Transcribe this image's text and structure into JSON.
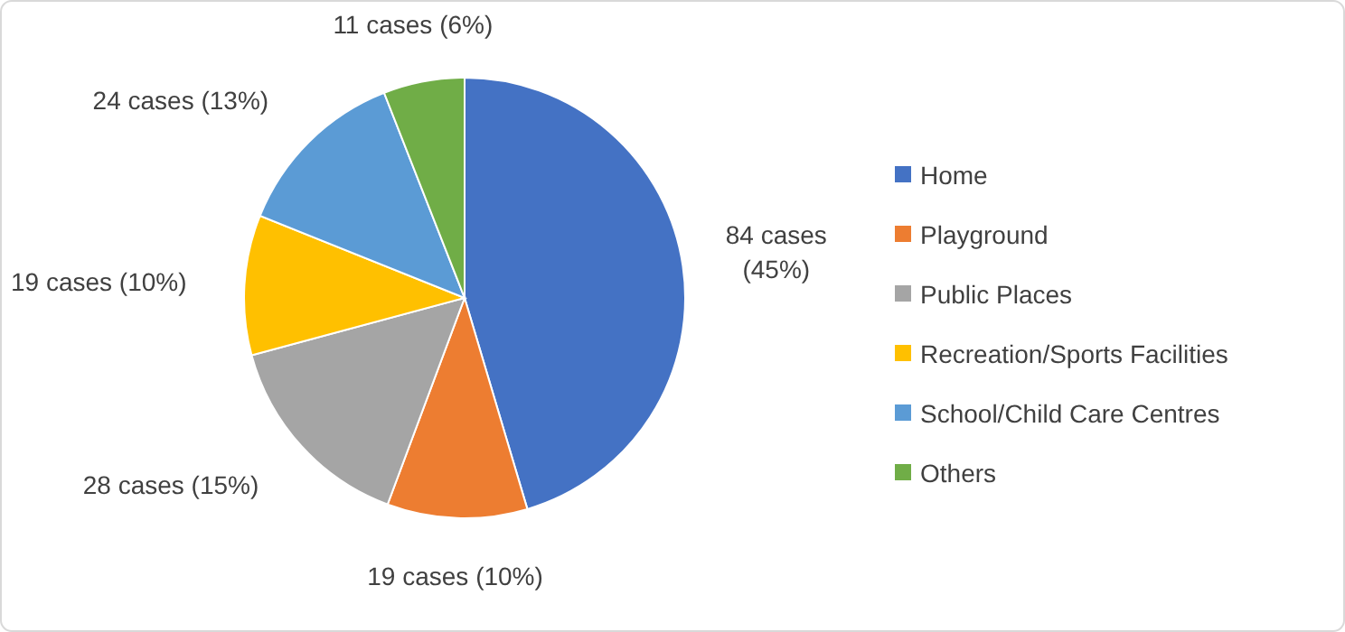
{
  "chart_data": {
    "type": "pie",
    "categories": [
      "Home",
      "Playground",
      "Public Places",
      "Recreation/Sports Facilities",
      "School/Child Care Centres",
      "Others"
    ],
    "values": [
      84,
      19,
      28,
      19,
      24,
      11
    ],
    "colors": [
      "#4472c4",
      "#ed7d31",
      "#a5a5a5",
      "#ffc000",
      "#5b9bd5",
      "#70ad47"
    ],
    "value_labels": [
      "84 cases (45%)",
      "19 cases (10%)",
      "28 cases (15%)",
      "19 cases (10%)",
      "24 cases (13%)",
      "11 cases (6%)"
    ],
    "legend": "right"
  }
}
